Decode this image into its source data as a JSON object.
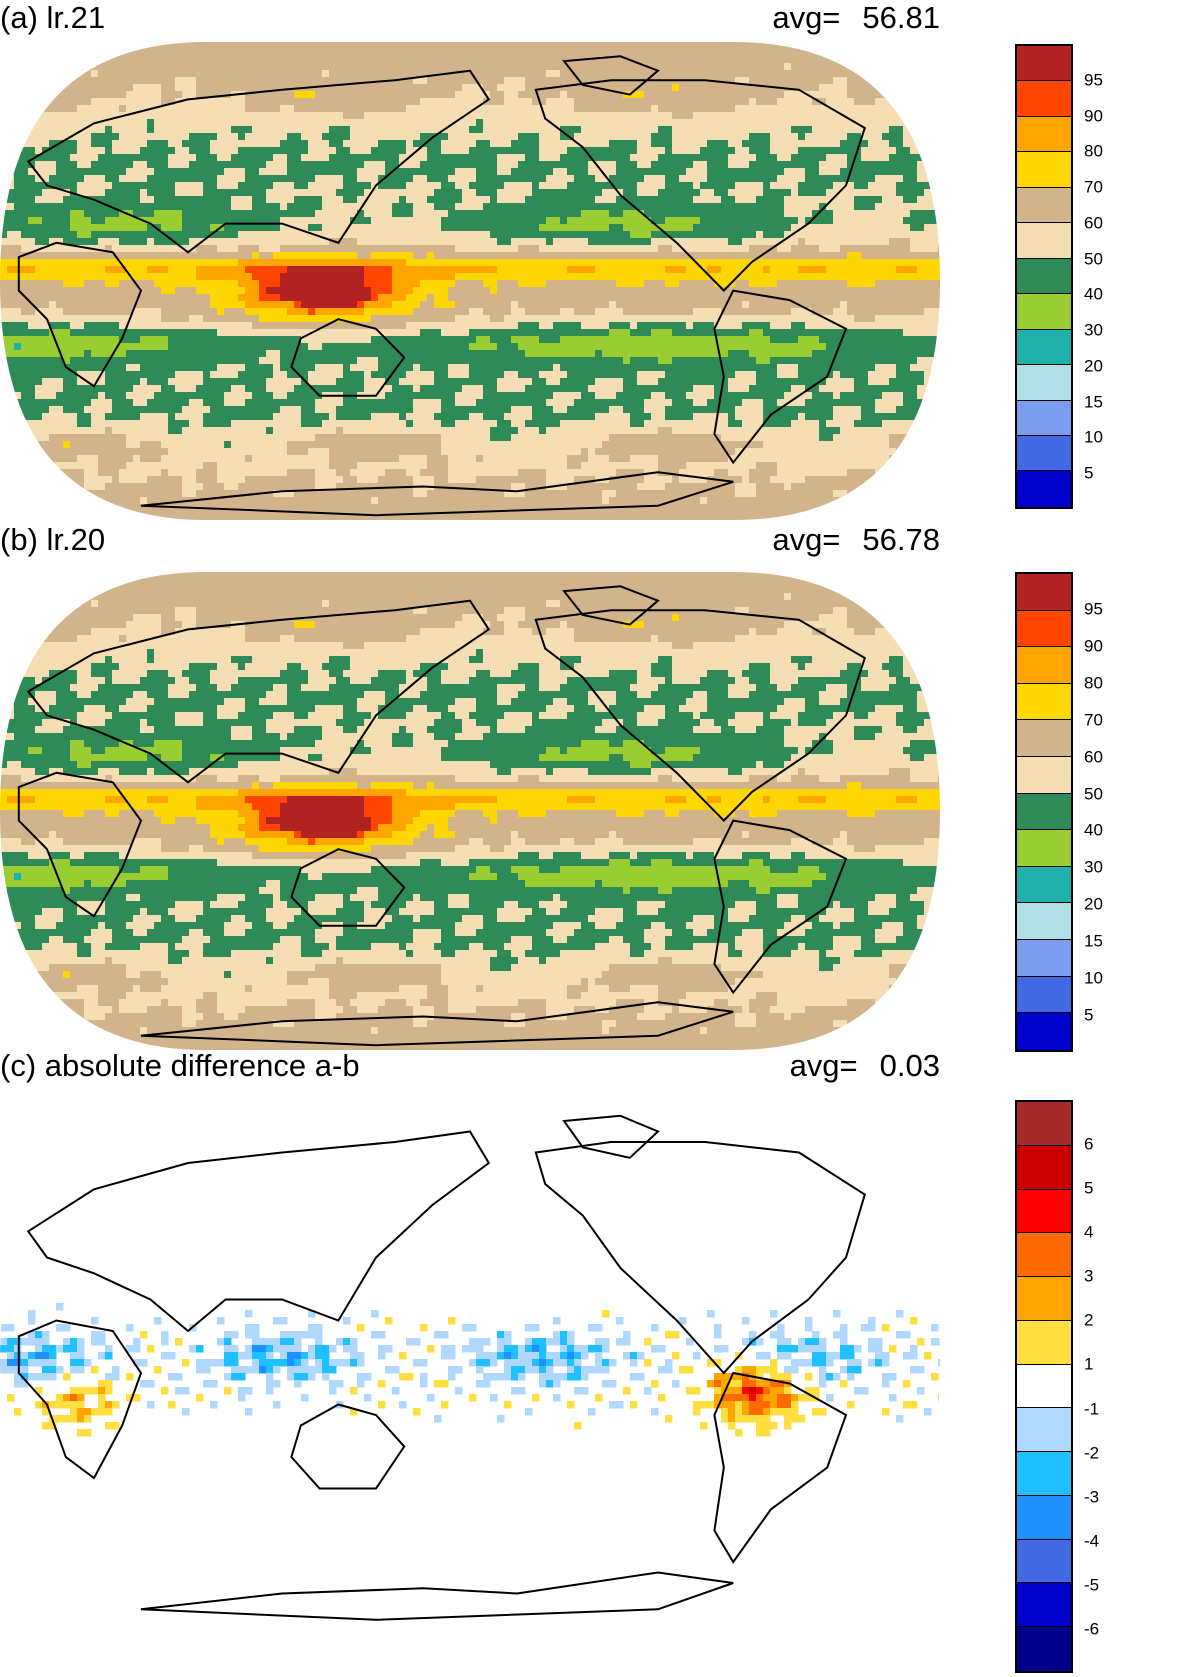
{
  "panels": [
    {
      "title": "(a) lr.21",
      "avg_label": "avg=",
      "avg_value": "56.81",
      "field": "full",
      "colorbar": {
        "colors": [
          "#b22222",
          "#ff4500",
          "#ffa500",
          "#ffd700",
          "#d2b48c",
          "#f5deb3",
          "#2e8b57",
          "#9acd32",
          "#20b2aa",
          "#b0e0e6",
          "#7b9ded",
          "#4169e1",
          "#0000cd"
        ],
        "labels": [
          "95",
          "90",
          "80",
          "70",
          "60",
          "50",
          "40",
          "30",
          "20",
          "15",
          "10",
          "5"
        ]
      }
    },
    {
      "title": "(b) lr.20",
      "avg_label": "avg=",
      "avg_value": "56.78",
      "field": "full",
      "colorbar": {
        "colors": [
          "#b22222",
          "#ff4500",
          "#ffa500",
          "#ffd700",
          "#d2b48c",
          "#f5deb3",
          "#2e8b57",
          "#9acd32",
          "#20b2aa",
          "#b0e0e6",
          "#7b9ded",
          "#4169e1",
          "#0000cd"
        ],
        "labels": [
          "95",
          "90",
          "80",
          "70",
          "60",
          "50",
          "40",
          "30",
          "20",
          "15",
          "10",
          "5"
        ]
      }
    },
    {
      "title": "(c) absolute difference a-b",
      "avg_label": "avg=",
      "avg_value": "0.03",
      "field": "diff",
      "colorbar": {
        "colors": [
          "#a52a2a",
          "#cd0000",
          "#ff0000",
          "#ff6a00",
          "#ffa500",
          "#ffdf40",
          "#ffffff",
          "#b0d8ff",
          "#1ec0ff",
          "#1e90ff",
          "#4169e1",
          "#0000cd",
          "#00008b"
        ],
        "labels": [
          "6",
          "5",
          "4",
          "3",
          "2",
          "1",
          "-1",
          "-2",
          "-3",
          "-4",
          "-5",
          "-6"
        ]
      }
    }
  ]
}
